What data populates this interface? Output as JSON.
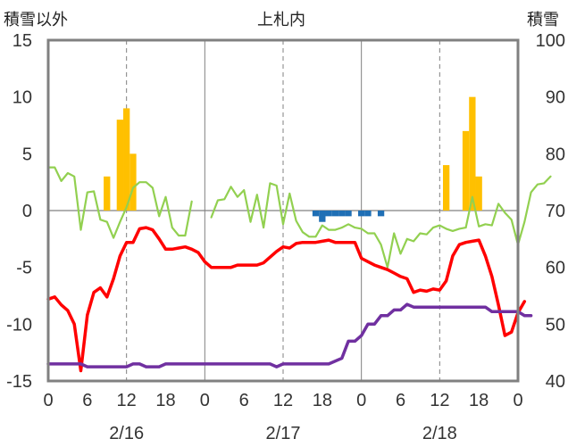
{
  "chart_data": {
    "type": "line",
    "title": "上札内",
    "left_axis_label": "積雪以外",
    "right_axis_label": "積雪",
    "left_ylim": [
      -15,
      15
    ],
    "left_yticks": [
      "15",
      "10",
      "5",
      "0",
      "-5",
      "-10",
      "-15"
    ],
    "right_ylim": [
      40,
      100
    ],
    "right_yticks": [
      "100",
      "90",
      "80",
      "70",
      "60",
      "50",
      "40"
    ],
    "x_tick_labels": [
      "0",
      "6",
      "12",
      "18",
      "0",
      "6",
      "12",
      "18",
      "0",
      "6",
      "12",
      "18",
      "0"
    ],
    "date_labels": [
      "2/16",
      "2/17",
      "2/18"
    ],
    "grid": "dashed vertical every 12h; solid vertical at midnights; solid horizontal at 0",
    "colors": {
      "precip_bar": "#FFC000",
      "blue_bar": "#1F6FB5",
      "green_line": "#92D050",
      "red_line": "#FF0000",
      "purple_line": "#7030A0",
      "frame": "#808080"
    },
    "series": [
      {
        "axis": "left",
        "kind": "bar",
        "color": "#FFC000",
        "points": [
          [
            9,
            3
          ],
          [
            11,
            8
          ],
          [
            12,
            9
          ],
          [
            13,
            5
          ],
          [
            61,
            4
          ],
          [
            62,
            0
          ],
          [
            63,
            0
          ],
          [
            64,
            7
          ],
          [
            65,
            10
          ],
          [
            66,
            3
          ]
        ]
      },
      {
        "axis": "left",
        "kind": "bar",
        "color": "#1F6FB5",
        "points": [
          [
            41,
            -0.5
          ],
          [
            42,
            -1
          ],
          [
            43,
            -0.5
          ],
          [
            44,
            -0.5
          ],
          [
            45,
            -0.5
          ],
          [
            46,
            -0.5
          ],
          [
            48,
            -0.5
          ],
          [
            49,
            -0.5
          ],
          [
            51,
            -0.5
          ]
        ]
      },
      {
        "axis": "left",
        "kind": "line",
        "color": "#92D050",
        "points": [
          [
            0,
            3.8
          ],
          [
            1,
            3.8
          ],
          [
            2,
            2.6
          ],
          [
            3,
            3.3
          ],
          [
            4,
            3
          ],
          [
            5,
            -1.7
          ],
          [
            6,
            1.6
          ],
          [
            7,
            1.7
          ],
          [
            8,
            -0.8
          ],
          [
            9,
            -1
          ],
          [
            10,
            -2.4
          ],
          [
            11,
            -1
          ],
          [
            12,
            0.3
          ],
          [
            13,
            2
          ],
          [
            14,
            2.5
          ],
          [
            15,
            2.5
          ],
          [
            16,
            2
          ],
          [
            17,
            -0.5
          ],
          [
            18,
            1.2
          ],
          [
            19,
            -1.5
          ],
          [
            20,
            -2.2
          ],
          [
            21,
            -2.2
          ],
          [
            22,
            0.8
          ],
          null,
          [
            25,
            -0.6
          ],
          [
            26,
            0.9
          ],
          [
            27,
            1
          ],
          [
            28,
            2.1
          ],
          [
            29,
            1.2
          ],
          [
            30,
            1.8
          ],
          [
            31,
            -1
          ],
          [
            32,
            1.4
          ],
          [
            33,
            -1.5
          ],
          [
            34,
            2.4
          ],
          [
            35,
            2.2
          ],
          [
            36,
            -1.2
          ],
          [
            37,
            1.5
          ],
          [
            38,
            -0.9
          ],
          [
            39,
            -1.9
          ],
          [
            40,
            -2.3
          ],
          [
            41,
            -2.3
          ],
          [
            42,
            -1.3
          ],
          [
            43,
            -1.7
          ],
          [
            44,
            -1.7
          ],
          [
            45,
            -1.5
          ],
          [
            46,
            -1.2
          ],
          [
            47,
            -1.5
          ],
          [
            48,
            -1.6
          ],
          [
            49,
            -2
          ],
          [
            50,
            -2
          ],
          [
            51,
            -3
          ],
          [
            52,
            -5
          ],
          [
            53,
            -2
          ],
          [
            54,
            -3.8
          ],
          [
            55,
            -2.5
          ],
          [
            56,
            -2.7
          ],
          [
            57,
            -2
          ],
          [
            58,
            -2.1
          ],
          [
            59,
            -1.5
          ],
          [
            60,
            -1.3
          ],
          [
            61,
            -1.6
          ],
          [
            62,
            -1.8
          ],
          [
            63,
            -1.6
          ],
          [
            64,
            -1.5
          ],
          [
            65,
            1.2
          ],
          [
            66,
            -1.4
          ],
          [
            67,
            -1.2
          ],
          [
            68,
            -1.3
          ],
          [
            69,
            0.6
          ],
          [
            70,
            -0.2
          ],
          [
            71,
            -0.8
          ],
          [
            72,
            -3
          ],
          [
            73,
            -1
          ],
          [
            74,
            1.6
          ],
          [
            75,
            2.3
          ],
          [
            76,
            2.4
          ],
          [
            77,
            3
          ]
        ]
      },
      {
        "axis": "left",
        "kind": "line",
        "color": "#FF0000",
        "points": [
          [
            0,
            -7.8
          ],
          [
            1,
            -7.6
          ],
          [
            2,
            -8.3
          ],
          [
            3,
            -8.8
          ],
          [
            4,
            -10
          ],
          [
            5,
            -14.1
          ],
          [
            6,
            -9.2
          ],
          [
            7,
            -7.2
          ],
          [
            8,
            -6.8
          ],
          [
            9,
            -7.6
          ],
          [
            10,
            -6
          ],
          [
            11,
            -4
          ],
          [
            12,
            -2.8
          ],
          [
            13,
            -2.8
          ],
          [
            14,
            -1.6
          ],
          [
            15,
            -1.5
          ],
          [
            16,
            -1.7
          ],
          [
            17,
            -2.5
          ],
          [
            18,
            -3.4
          ],
          [
            19,
            -3.4
          ],
          [
            20,
            -3.3
          ],
          [
            21,
            -3.2
          ],
          [
            22,
            -3.4
          ],
          [
            23,
            -3.7
          ],
          [
            24,
            -4.5
          ],
          [
            25,
            -5
          ],
          [
            26,
            -5
          ],
          [
            27,
            -5
          ],
          [
            28,
            -5
          ],
          [
            29,
            -4.8
          ],
          [
            30,
            -4.8
          ],
          [
            31,
            -4.8
          ],
          [
            32,
            -4.8
          ],
          [
            33,
            -4.6
          ],
          [
            34,
            -4.1
          ],
          [
            35,
            -3.6
          ],
          [
            36,
            -3.2
          ],
          [
            37,
            -3.3
          ],
          [
            38,
            -2.9
          ],
          [
            39,
            -2.8
          ],
          [
            40,
            -2.8
          ],
          [
            41,
            -2.8
          ],
          [
            42,
            -2.7
          ],
          [
            43,
            -2.6
          ],
          [
            44,
            -2.8
          ],
          [
            45,
            -2.8
          ],
          [
            46,
            -2.8
          ],
          [
            47,
            -2.8
          ],
          [
            48,
            -4.2
          ],
          [
            49,
            -4.5
          ],
          [
            50,
            -4.8
          ],
          [
            51,
            -5
          ],
          [
            52,
            -5.2
          ],
          [
            53,
            -5.5
          ],
          [
            54,
            -5.8
          ],
          [
            55,
            -6
          ],
          [
            56,
            -7.2
          ],
          [
            57,
            -7
          ],
          [
            58,
            -7.1
          ],
          [
            59,
            -6.9
          ],
          [
            60,
            -7
          ],
          [
            61,
            -6.2
          ],
          [
            62,
            -4
          ],
          [
            63,
            -3
          ],
          [
            64,
            -2.8
          ],
          [
            65,
            -2.7
          ],
          [
            66,
            -2.6
          ],
          [
            67,
            -4
          ],
          [
            68,
            -5.8
          ],
          [
            69,
            -8.3
          ],
          [
            70,
            -11
          ],
          [
            71,
            -10.7
          ],
          [
            72,
            -9
          ],
          [
            73,
            -8
          ]
        ]
      },
      {
        "axis": "right",
        "kind": "line",
        "color": "#7030A0",
        "points": [
          [
            0,
            43
          ],
          [
            5,
            43
          ],
          [
            6,
            42.5
          ],
          [
            12,
            42.5
          ],
          [
            13,
            43
          ],
          [
            14,
            43
          ],
          [
            15,
            42.5
          ],
          [
            17,
            42.5
          ],
          [
            18,
            43
          ],
          [
            34,
            43
          ],
          [
            35,
            42.5
          ],
          [
            36,
            43
          ],
          [
            43,
            43
          ],
          [
            45,
            44
          ],
          [
            46,
            47
          ],
          [
            47,
            47
          ],
          [
            48,
            48
          ],
          [
            49,
            50
          ],
          [
            50,
            50
          ],
          [
            51,
            51.5
          ],
          [
            52,
            51.5
          ],
          [
            53,
            52.5
          ],
          [
            54,
            52.5
          ],
          [
            55,
            53.5
          ],
          [
            56,
            53
          ],
          [
            57,
            53
          ],
          [
            67,
            53
          ],
          [
            68,
            52.2
          ],
          [
            70,
            52.2
          ],
          [
            72,
            52.2
          ],
          [
            73,
            51.5
          ],
          [
            74,
            51.5
          ]
        ]
      }
    ]
  }
}
